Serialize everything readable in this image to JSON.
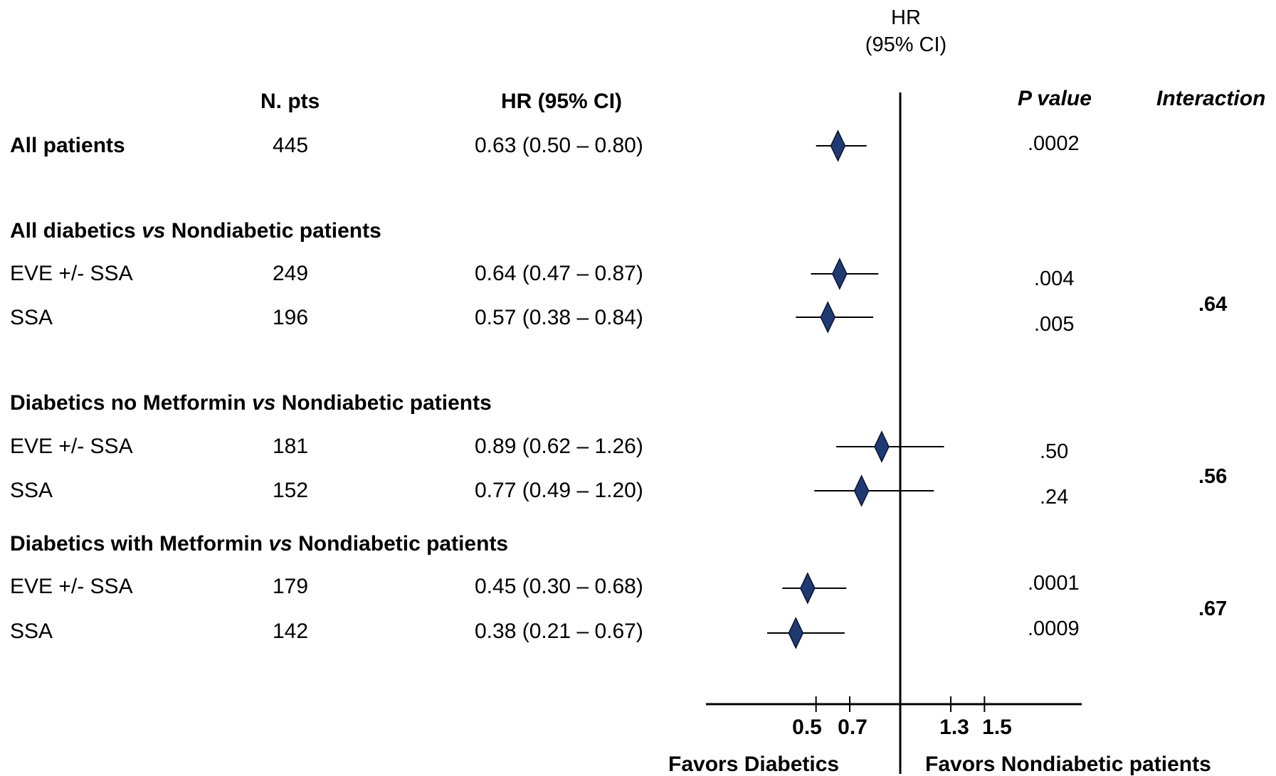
{
  "chart_data": {
    "type": "forest",
    "plot_title_line1": "HR",
    "plot_title_line2": "(95% CI)",
    "column_headers": {
      "npts": "N. pts",
      "hr": "HR (95% CI)",
      "p": "P value",
      "interaction": "Interaction"
    },
    "reference_value": 1.0,
    "xticks": [
      "0.5",
      "0.7",
      "1.3",
      "1.5"
    ],
    "xtick_values": [
      0.5,
      0.7,
      1.3,
      1.5
    ],
    "favors_left": "Favors Diabetics",
    "favors_right": "Favors Nondiabetic patients",
    "group_headers": [
      {
        "prefix": "All diabetics ",
        "italic": "vs",
        "suffix": " Nondiabetic patients"
      },
      {
        "prefix": "Diabetics no Metformin ",
        "italic": "vs",
        "suffix": " Nondiabetic patients"
      },
      {
        "prefix": "Diabetics with Metformin ",
        "italic": "vs",
        "suffix": " Nondiabetic patients"
      }
    ],
    "rows": [
      {
        "label": "All patients",
        "bold": true,
        "n": "445",
        "hr_text": "0.63 (0.50 – 0.80)",
        "hr": 0.63,
        "lo": 0.5,
        "hi": 0.8,
        "p": ".0002"
      },
      {
        "label": "EVE +/- SSA",
        "n": "249",
        "hr_text": "0.64 (0.47 – 0.87)",
        "hr": 0.64,
        "lo": 0.47,
        "hi": 0.87,
        "p": ".004"
      },
      {
        "label": "SSA",
        "n": "196",
        "hr_text": "0.57 (0.38 – 0.84)",
        "hr": 0.57,
        "lo": 0.38,
        "hi": 0.84,
        "p": ".005"
      },
      {
        "label": "EVE +/- SSA",
        "n": "181",
        "hr_text": "0.89 (0.62 – 1.26)",
        "hr": 0.89,
        "lo": 0.62,
        "hi": 1.26,
        "p": ".50"
      },
      {
        "label": "SSA",
        "n": "152",
        "hr_text": "0.77 (0.49 – 1.20)",
        "hr": 0.77,
        "lo": 0.49,
        "hi": 1.2,
        "p": ".24"
      },
      {
        "label": "EVE +/- SSA",
        "n": "179",
        "hr_text": "0.45 (0.30 – 0.68)",
        "hr": 0.45,
        "lo": 0.3,
        "hi": 0.68,
        "p": ".0001"
      },
      {
        "label": "SSA",
        "n": "142",
        "hr_text": "0.38 (0.21 – 0.67)",
        "hr": 0.38,
        "lo": 0.21,
        "hi": 0.67,
        "p": ".0009"
      }
    ],
    "interactions": [
      ".64",
      ".56",
      ".67"
    ],
    "marker_color": "#1f3a73",
    "marker_edge": "#0a1530"
  }
}
